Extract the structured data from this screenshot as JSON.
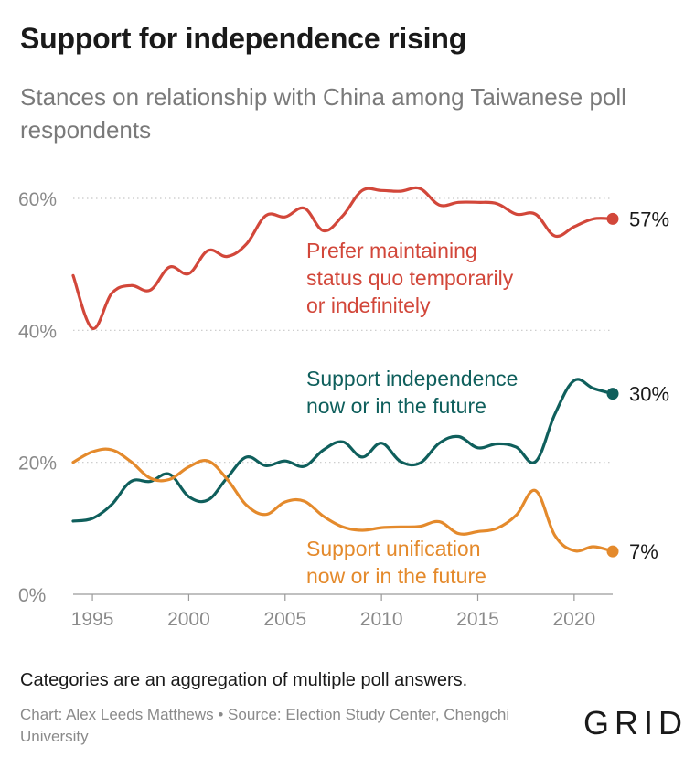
{
  "header": {
    "title": "Support for independence rising",
    "subtitle": "Stances on relationship with China among Taiwanese poll respondents"
  },
  "footer": {
    "note": "Categories are an aggregation of multiple poll answers.",
    "credit": "Chart: Alex Leeds Matthews • Source: Election Study Center, Chengchi University",
    "logo": "GRID"
  },
  "chart_data": {
    "type": "line",
    "title": "Support for independence rising",
    "subtitle": "Stances on relationship with China among Taiwanese poll respondents",
    "xlabel": "",
    "ylabel": "",
    "xlim": [
      1994,
      2022
    ],
    "ylim": [
      0,
      60
    ],
    "x_ticks": [
      1995,
      2000,
      2005,
      2010,
      2015,
      2020
    ],
    "y_ticks": [
      0,
      20,
      40,
      60
    ],
    "y_tick_labels": [
      "0%",
      "20%",
      "40%",
      "60%"
    ],
    "grid": true,
    "x": [
      1994,
      1995,
      1996,
      1997,
      1998,
      1999,
      2000,
      2001,
      2002,
      2003,
      2004,
      2005,
      2006,
      2007,
      2008,
      2009,
      2010,
      2011,
      2012,
      2013,
      2014,
      2015,
      2016,
      2017,
      2018,
      2019,
      2020,
      2021,
      2022
    ],
    "series": [
      {
        "name": "Prefer maintaining status quo temporarily or indefinitely",
        "color": "#d2473a",
        "end_label": "57%",
        "values": [
          48.3,
          40.3,
          45.6,
          46.8,
          46.1,
          49.6,
          48.6,
          52.1,
          51.2,
          53.1,
          57.4,
          57.2,
          58.5,
          55.1,
          57.4,
          61.2,
          61.2,
          61.1,
          61.5,
          59.0,
          59.4,
          59.4,
          59.2,
          57.6,
          57.6,
          54.3,
          55.7,
          56.9,
          56.9
        ]
      },
      {
        "name": "Support independence now or in the future",
        "color": "#0f5f5c",
        "end_label": "30%",
        "values": [
          11.1,
          11.5,
          13.6,
          17.1,
          17.1,
          18.2,
          14.8,
          14.3,
          17.7,
          20.8,
          19.5,
          20.2,
          19.4,
          21.9,
          23.1,
          20.8,
          22.9,
          20.1,
          19.9,
          22.9,
          23.9,
          22.2,
          22.8,
          22.3,
          20.1,
          27.3,
          32.4,
          31.2,
          30.4
        ]
      },
      {
        "name": "Support unification now or in the future",
        "color": "#e48a2c",
        "end_label": "7%",
        "values": [
          20.0,
          21.6,
          21.9,
          20.1,
          17.6,
          17.4,
          19.3,
          20.2,
          17.4,
          13.5,
          12.1,
          14.0,
          14.1,
          11.8,
          10.2,
          9.7,
          10.1,
          10.2,
          10.3,
          11.0,
          9.2,
          9.5,
          10.0,
          12.0,
          15.7,
          8.9,
          6.6,
          7.2,
          6.5
        ]
      }
    ],
    "legend": "inline labels next to lines"
  }
}
